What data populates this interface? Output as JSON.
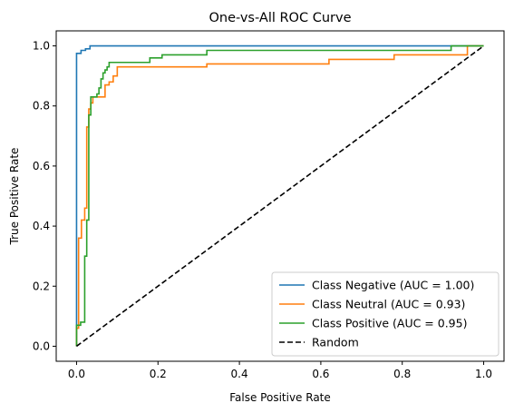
{
  "chart_data": {
    "type": "line",
    "title": "One-vs-All ROC Curve",
    "xlabel": "False Positive Rate",
    "ylabel": "True Positive Rate",
    "xlim": [
      -0.05,
      1.05
    ],
    "ylim": [
      -0.05,
      1.05
    ],
    "xticks": [
      "0.0",
      "0.2",
      "0.4",
      "0.6",
      "0.8",
      "1.0"
    ],
    "yticks": [
      "0.0",
      "0.2",
      "0.4",
      "0.6",
      "0.8",
      "1.0"
    ],
    "legend_position": "bottom-right",
    "grid": false,
    "series": [
      {
        "name": "Class Negative (AUC = 1.00)",
        "color": "#1f77b4",
        "style": "solid",
        "x": [
          0,
          0,
          0.011,
          0.011,
          0.022,
          0.022,
          0.033,
          0.033,
          0.91,
          0.91,
          1.0
        ],
        "y": [
          0,
          0.975,
          0.975,
          0.985,
          0.985,
          0.99,
          0.99,
          1.0,
          1.0,
          1.0,
          1.0
        ]
      },
      {
        "name": "Class Neutral (AUC = 0.93)",
        "color": "#ff7f0e",
        "style": "solid",
        "x": [
          0,
          0,
          0.005,
          0.005,
          0.012,
          0.012,
          0.02,
          0.02,
          0.025,
          0.025,
          0.03,
          0.03,
          0.035,
          0.035,
          0.04,
          0.04,
          0.05,
          0.05,
          0.07,
          0.07,
          0.08,
          0.08,
          0.09,
          0.09,
          0.1,
          0.1,
          0.32,
          0.32,
          0.62,
          0.62,
          0.78,
          0.78,
          0.96,
          0.96,
          1.0
        ],
        "y": [
          0,
          0.06,
          0.06,
          0.36,
          0.36,
          0.42,
          0.42,
          0.46,
          0.46,
          0.73,
          0.73,
          0.79,
          0.79,
          0.81,
          0.81,
          0.83,
          0.83,
          0.83,
          0.83,
          0.87,
          0.87,
          0.88,
          0.88,
          0.9,
          0.9,
          0.93,
          0.93,
          0.94,
          0.94,
          0.955,
          0.955,
          0.97,
          0.97,
          1.0,
          1.0
        ]
      },
      {
        "name": "Class Positive (AUC = 0.95)",
        "color": "#2ca02c",
        "style": "solid",
        "x": [
          0,
          0,
          0.01,
          0.01,
          0.02,
          0.02,
          0.025,
          0.025,
          0.03,
          0.03,
          0.035,
          0.035,
          0.05,
          0.05,
          0.055,
          0.055,
          0.06,
          0.06,
          0.065,
          0.065,
          0.07,
          0.07,
          0.075,
          0.075,
          0.08,
          0.08,
          0.18,
          0.18,
          0.21,
          0.21,
          0.32,
          0.32,
          0.92,
          0.92,
          0.99,
          1.0
        ],
        "y": [
          0,
          0.07,
          0.07,
          0.08,
          0.08,
          0.3,
          0.3,
          0.42,
          0.42,
          0.77,
          0.77,
          0.83,
          0.83,
          0.84,
          0.84,
          0.86,
          0.86,
          0.89,
          0.89,
          0.91,
          0.91,
          0.92,
          0.92,
          0.93,
          0.93,
          0.945,
          0.945,
          0.96,
          0.96,
          0.97,
          0.97,
          0.985,
          0.985,
          1.0,
          1.0,
          1.0
        ]
      },
      {
        "name": "Random",
        "color": "#000000",
        "style": "dashed",
        "x": [
          0,
          1
        ],
        "y": [
          0,
          1
        ]
      }
    ]
  }
}
